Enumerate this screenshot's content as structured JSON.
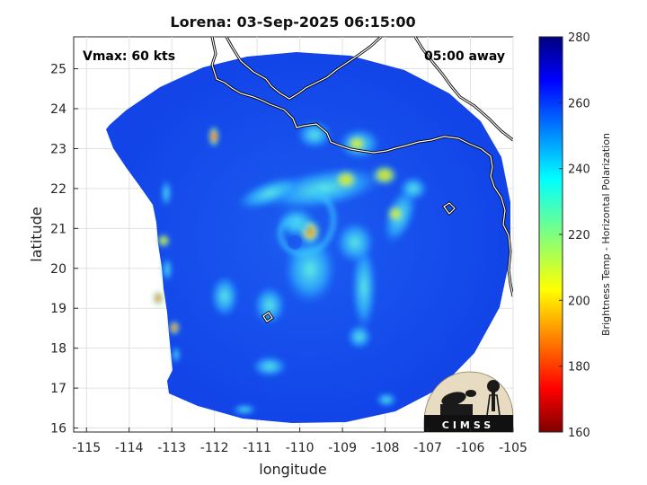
{
  "plot": {
    "title": "Lorena: 03-Sep-2025 06:15:00",
    "vmax_label": "Vmax: 60 kts",
    "time_label": "05:00 away",
    "xlabel": "longitude",
    "ylabel": "latitude",
    "xticks": [
      "-115",
      "-114",
      "-113",
      "-112",
      "-111",
      "-110",
      "-109",
      "-108",
      "-107",
      "-106",
      "-105"
    ],
    "yticks": [
      "16",
      "17",
      "18",
      "19",
      "20",
      "21",
      "22",
      "23",
      "24",
      "25"
    ],
    "xlim": [
      -115.3,
      -105
    ],
    "ylim": [
      15.9,
      25.8
    ],
    "grid": true
  },
  "colorbar": {
    "label": "Brightness Temp - Horizontal Polarization",
    "ticks": [
      "160",
      "180",
      "200",
      "220",
      "240",
      "260",
      "280"
    ],
    "range": [
      160,
      280
    ],
    "colormap": "jet"
  },
  "logo": {
    "text": "CIMSS"
  },
  "storm_center": {
    "lon": -110.0,
    "lat": 21.0
  }
}
